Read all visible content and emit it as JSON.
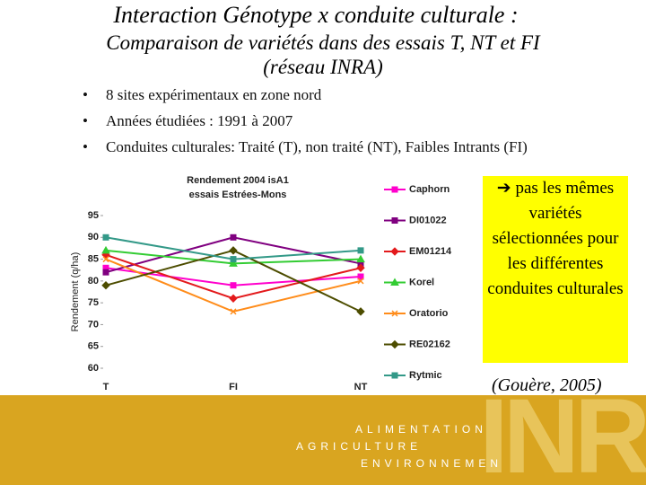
{
  "header": {
    "title": "Interaction Génotype  x  conduite culturale :",
    "subtitle": "Comparaison de variétés dans des essais T, NT et FI",
    "subtitle2": "(réseau INRA)"
  },
  "bullets": [
    "8 sites expérimentaux en zone nord",
    "Années étudiées : 1991 à 2007",
    "Conduites culturales: Traité (T), non traité (NT), Faibles Intrants (FI)"
  ],
  "note": {
    "arrow": "➔",
    "text": "pas les mêmes variétés sélectionnées pour les différentes conduites culturales"
  },
  "citation": "(Gouère, 2005)",
  "footer": {
    "line1": "ALIMENTATION",
    "line2": "AGRICULTURE",
    "line3": "ENVIRONNEMEN",
    "logo": "INRA"
  },
  "chart_data": {
    "type": "line",
    "title": "Rendement 2004 isA1",
    "subtitle": "essais Estrées-Mons",
    "y_label": "Rendement (q/ha)",
    "categories": [
      "T",
      "FI",
      "NT"
    ],
    "ylim": [
      60,
      95
    ],
    "yticks": [
      60,
      65,
      70,
      75,
      80,
      85,
      90,
      95
    ],
    "series": [
      {
        "name": "Caphorn",
        "color": "#ff00cc",
        "marker": "square",
        "values": [
          83,
          79,
          81
        ]
      },
      {
        "name": "DI01022",
        "color": "#800080",
        "marker": "square",
        "values": [
          82,
          90,
          84
        ]
      },
      {
        "name": "EM01214",
        "color": "#e31a1c",
        "marker": "diamond",
        "values": [
          86,
          76,
          83
        ]
      },
      {
        "name": "Korel",
        "color": "#33cc33",
        "marker": "triangle",
        "values": [
          87,
          84,
          85
        ]
      },
      {
        "name": "Oratorio",
        "color": "#ff8c1a",
        "marker": "x",
        "values": [
          85,
          73,
          80
        ]
      },
      {
        "name": "RE02162",
        "color": "#4d4d00",
        "marker": "diamond",
        "values": [
          79,
          87,
          73
        ]
      },
      {
        "name": "Rytmic",
        "color": "#339988",
        "marker": "square",
        "values": [
          90,
          85,
          87
        ]
      }
    ]
  }
}
